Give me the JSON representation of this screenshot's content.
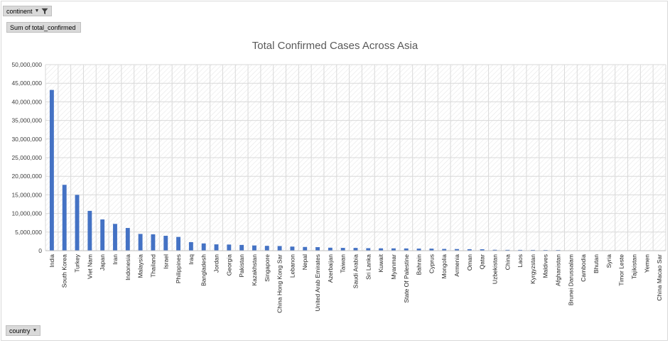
{
  "filter_button": {
    "label": "continent"
  },
  "value_button": {
    "label": "Sum of total_confirmed"
  },
  "axis_button": {
    "label": "country"
  },
  "colors": {
    "bar": "#4472c4",
    "grid": "#d9d9d9",
    "field_button": "#d9d9d9"
  },
  "icons": {
    "filter": "funnel-icon",
    "dropdown": "dropdown-arrow-icon"
  },
  "chart_data": {
    "type": "bar",
    "title": "Total Confirmed Cases Across Asia",
    "ylim": [
      0,
      50000000
    ],
    "yticks": [
      "0",
      "5,000,000",
      "10,000,000",
      "15,000,000",
      "20,000,000",
      "25,000,000",
      "30,000,000",
      "35,000,000",
      "40,000,000",
      "45,000,000",
      "50,000,000"
    ],
    "grid": true,
    "legend": "none",
    "categories": [
      "India",
      "South Korea",
      "Turkey",
      "Viet Nam",
      "Japan",
      "Iran",
      "Indonesia",
      "Malaysia",
      "Thailand",
      "Israel",
      "Philippines",
      "Iraq",
      "Bangladesh",
      "Jordan",
      "Georgia",
      "Pakistan",
      "Kazakhstan",
      "Singapore",
      "China Hong Kong Sar",
      "Lebanon",
      "Nepal",
      "United Arab Emirates",
      "Azerbaijan",
      "Taiwan",
      "Saudi Arabia",
      "Sri Lanka",
      "Kuwait",
      "Myanmar",
      "State Of Palestine",
      "Bahrain",
      "Cyprus",
      "Mongolia",
      "Armenia",
      "Oman",
      "Qatar",
      "Uzbekistan",
      "China",
      "Laos",
      "Kyrgyzstan",
      "Maldives",
      "Afghanistan",
      "Brunei Darussalam",
      "Cambodia",
      "Bhutan",
      "Syria",
      "Timor Leste",
      "Tajikistan",
      "Yemen",
      "China Macao Sar"
    ],
    "values": [
      43200000,
      17700000,
      15000000,
      10700000,
      8400000,
      7200000,
      6100000,
      4500000,
      4400000,
      4000000,
      3700000,
      2300000,
      1950000,
      1700000,
      1650000,
      1550000,
      1400000,
      1300000,
      1250000,
      1100000,
      1000000,
      950000,
      800000,
      750000,
      740000,
      670000,
      630000,
      620000,
      600000,
      560000,
      550000,
      470000,
      440000,
      400000,
      380000,
      240000,
      220000,
      210000,
      200000,
      180000,
      180000,
      0,
      0,
      0,
      0,
      0,
      0,
      0,
      0
    ]
  }
}
